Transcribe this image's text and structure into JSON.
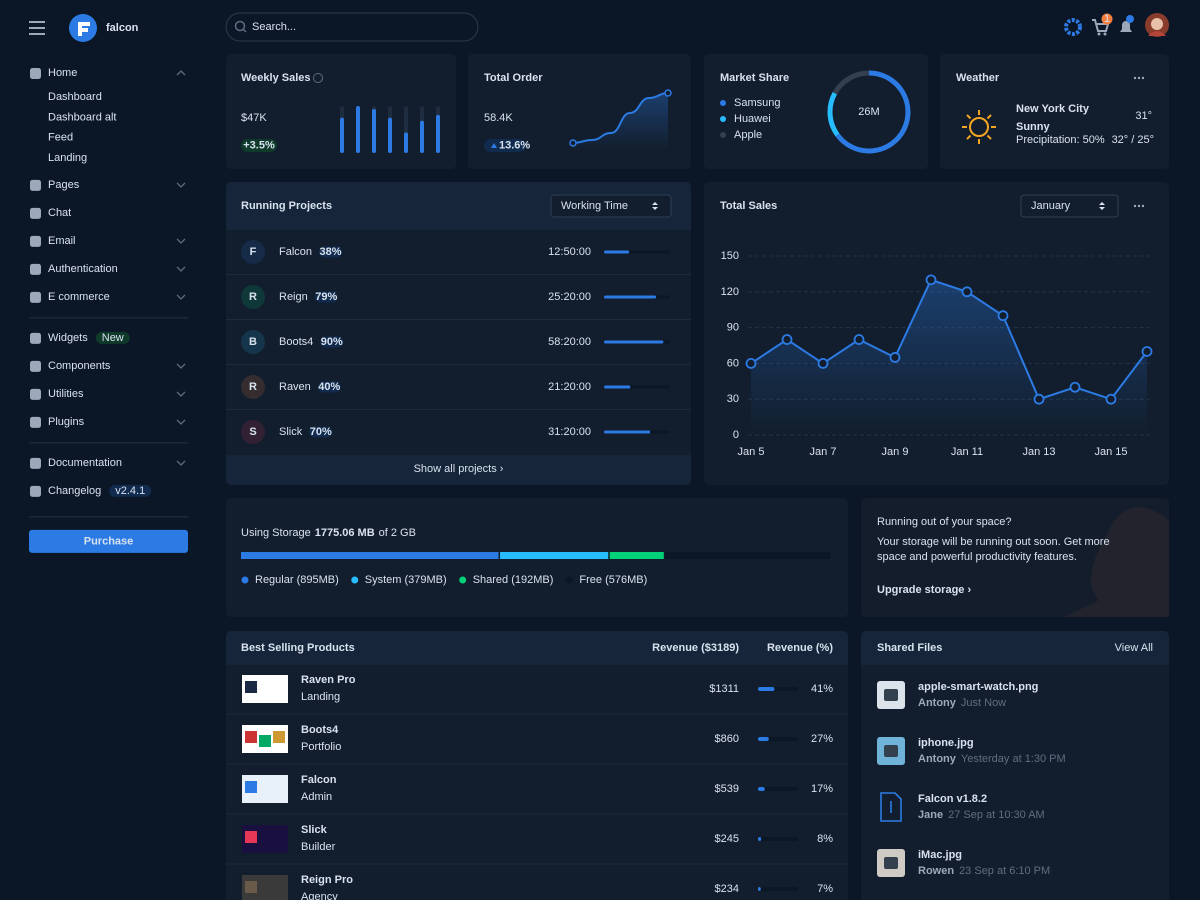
{
  "header": {
    "brand": "falcon",
    "search_placeholder": "Search...",
    "cart_count": "1"
  },
  "nav": {
    "groups": [
      [
        {
          "label": "Home",
          "children": [
            "Dashboard",
            "Dashboard alt",
            "Feed",
            "Landing"
          ]
        },
        {
          "label": "Pages",
          "chevron": true
        },
        {
          "label": "Chat"
        },
        {
          "label": "Email",
          "chevron": true
        },
        {
          "label": "Authentication",
          "chevron": true
        },
        {
          "label": "E commerce",
          "chevron": true
        }
      ],
      [
        {
          "label": "Widgets",
          "badge": "New"
        },
        {
          "label": "Components",
          "chevron": true
        },
        {
          "label": "Utilities",
          "chevron": true
        },
        {
          "label": "Plugins",
          "chevron": true
        }
      ],
      [
        {
          "label": "Documentation",
          "chevron": true
        },
        {
          "label": "Changelog",
          "badge": "v2.4.1"
        }
      ]
    ],
    "purchase": "Purchase"
  },
  "weekly_sales": {
    "title": "Weekly Sales",
    "value": "$47K",
    "change": "+3.5%",
    "bars": [
      60,
      80,
      75,
      60,
      35,
      55,
      65
    ]
  },
  "total_order": {
    "title": "Total Order",
    "value": "58.4K",
    "change": "13.6%",
    "trend": [
      0,
      3,
      10,
      30,
      45,
      50
    ]
  },
  "market_share": {
    "title": "Market Share",
    "total": "26M",
    "brands": [
      {
        "name": "Samsung",
        "share": 65,
        "color": "#2c7be5"
      },
      {
        "name": "Huawei",
        "share": 18,
        "color": "#27bcfd"
      },
      {
        "name": "Apple",
        "share": 17,
        "color": "#344050"
      }
    ]
  },
  "weather": {
    "title": "Weather",
    "city": "New York City",
    "condition": "Sunny",
    "precipitation": "Precipitation: 50%",
    "temperature": "31°",
    "range": "32° / 25°"
  },
  "projects": {
    "title": "Running Projects",
    "sort": "Working Time",
    "footer": "Show all projects ›",
    "items": [
      {
        "initial": "F",
        "name": "Falcon",
        "progress": {
          "value": 38,
          "label": "38%"
        },
        "time": "12:50:00",
        "color": "#2c7be5"
      },
      {
        "initial": "R",
        "name": "Reign",
        "progress": {
          "value": 79,
          "label": "79%"
        },
        "time": "25:20:00",
        "color": "#00d27a"
      },
      {
        "initial": "B",
        "name": "Boots4",
        "progress": {
          "value": 90,
          "label": "90%"
        },
        "time": "58:20:00",
        "color": "#27bcfd"
      },
      {
        "initial": "R",
        "name": "Raven",
        "progress": {
          "value": 40,
          "label": "40%"
        },
        "time": "21:20:00",
        "color": "#f5803e"
      },
      {
        "initial": "S",
        "name": "Slick",
        "progress": {
          "value": 70,
          "label": "70%"
        },
        "time": "31:20:00",
        "color": "#e63757"
      }
    ]
  },
  "total_sales": {
    "filter": "January"
  },
  "chart_data": {
    "type": "line",
    "title": "Total Sales",
    "categories": [
      "Jan 5",
      null,
      "Jan 7",
      null,
      "Jan 9",
      null,
      "Jan 11",
      null,
      "Jan 13",
      null,
      "Jan 15",
      null
    ],
    "values": [
      60,
      80,
      60,
      80,
      65,
      130,
      120,
      100,
      30,
      40,
      30,
      70
    ],
    "color": "#2c7be5",
    "ylim": [
      0,
      150
    ],
    "yticks": [
      0,
      30,
      60,
      90,
      120,
      150
    ],
    "grid": true
  },
  "storage": {
    "prefix": "Using Storage",
    "used": "1775.06 MB",
    "suffix": "of 2 GB",
    "segments": [
      {
        "label": "Regular (895MB)",
        "value": 895,
        "color": "#2c7be5"
      },
      {
        "label": "System (379MB)",
        "value": 379,
        "color": "#27bcfd"
      },
      {
        "label": "Shared (192MB)",
        "value": 192,
        "color": "#00d27a"
      },
      {
        "label": "Free (576MB)",
        "value": 576,
        "color": "#0b1727"
      }
    ]
  },
  "upgrade": {
    "title": "Running out of your space?",
    "text": [
      "Your storage will be running out soon. Get more",
      "space and powerful productivity features."
    ],
    "link": "Upgrade storage ›"
  },
  "products": {
    "title": "Best Selling Products",
    "revenue_header": "Revenue ($3189)",
    "percent_header": "Revenue (%)",
    "items": [
      {
        "name": "Raven Pro",
        "category": "Landing",
        "revenue": "$1311",
        "share": {
          "value": 41,
          "label": "41%"
        }
      },
      {
        "name": "Boots4",
        "category": "Portfolio",
        "revenue": "$860",
        "share": {
          "value": 27,
          "label": "27%"
        }
      },
      {
        "name": "Falcon",
        "category": "Admin",
        "revenue": "$539",
        "share": {
          "value": 17,
          "label": "17%"
        }
      },
      {
        "name": "Slick",
        "category": "Builder",
        "revenue": "$245",
        "share": {
          "value": 8,
          "label": "8%"
        }
      },
      {
        "name": "Reign Pro",
        "category": "Agency",
        "revenue": "$234",
        "share": {
          "value": 7,
          "label": "7%"
        }
      }
    ]
  },
  "files": {
    "title": "Shared Files",
    "view_all": "View All",
    "items": [
      {
        "name": "apple-smart-watch.png",
        "user": "Antony",
        "time": "Just Now"
      },
      {
        "name": "iphone.jpg",
        "user": "Antony",
        "time": "Yesterday at 1:30 PM"
      },
      {
        "name": "Falcon v1.8.2",
        "user": "Jane",
        "time": "27 Sep at 10:30 AM"
      },
      {
        "name": "iMac.jpg",
        "user": "Rowen",
        "time": "23 Sep at 6:10 PM"
      }
    ]
  }
}
